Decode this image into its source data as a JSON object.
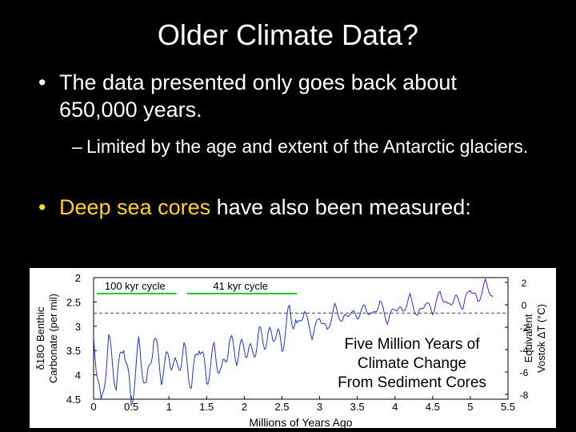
{
  "slide": {
    "title": "Older Climate Data?",
    "bullet1": "The data presented only goes back about 650,000 years.",
    "sub1": "Limited by the age and extent of the Antarctic glaciers.",
    "bullet2_highlight": "Deep sea cores",
    "bullet2_rest": " have also been measured:",
    "bullet_char": "•",
    "dash_char": "–",
    "highlight_color": "#ffd21f"
  },
  "chart_data": {
    "type": "line",
    "title": "Five Million Years of Climate Change From Sediment Cores",
    "title_lines": [
      "Five Million Years of",
      "Climate Change",
      "From Sediment Cores"
    ],
    "xlabel": "Millions of Years Ago",
    "ylabel_left": [
      "δ18O Benthic",
      "Carbonate (per mil)"
    ],
    "ylabel_right": [
      "Equivalent",
      "Vostok ΔT (°C)"
    ],
    "x_ticks": [
      "0",
      "0.5",
      "1",
      "1.5",
      "2",
      "2.5",
      "3",
      "3.5",
      "4",
      "4.5",
      "5",
      "5.5"
    ],
    "y_left_ticks": [
      "2",
      "2.5",
      "3",
      "3.5",
      "4",
      "4.5"
    ],
    "y_right_ticks": [
      "2",
      "0",
      "-2",
      "-4",
      "-6",
      "-8"
    ],
    "xlim": [
      0,
      5.5
    ],
    "ylim_left": [
      2,
      4.5
    ],
    "reference_line": 2.73,
    "annotations": [
      {
        "text": "100 kyr cycle",
        "x_start": 0.0,
        "x_end": 1.1
      },
      {
        "text": "41 kyr cycle",
        "x_start": 1.2,
        "x_end": 2.7
      }
    ],
    "series_color": "#2233cc",
    "annotation_color": "#22cc22",
    "series": [
      {
        "x": [
          0.0,
          0.1,
          0.2,
          0.3,
          0.4,
          0.5,
          0.6,
          0.7,
          0.8,
          0.9,
          1.0,
          1.1,
          1.2,
          1.3,
          1.4,
          1.5,
          1.6,
          1.7,
          1.8,
          1.9,
          2.0,
          2.1,
          2.2,
          2.3,
          2.4,
          2.5,
          2.6,
          2.7,
          2.8,
          2.9,
          3.0,
          3.1,
          3.2,
          3.3,
          3.4,
          3.5,
          3.6,
          3.7,
          3.8,
          3.9,
          4.0,
          4.1,
          4.2,
          4.3,
          4.4,
          4.5,
          4.6,
          4.7,
          4.8,
          4.9,
          5.0,
          5.1,
          5.2,
          5.3
        ],
        "values": [
          3.2,
          4.7,
          3.3,
          4.2,
          3.3,
          4.6,
          3.4,
          4.3,
          3.2,
          4.0,
          3.6,
          3.9,
          3.5,
          4.2,
          3.3,
          4.1,
          3.5,
          4.0,
          3.3,
          3.6,
          3.4,
          3.6,
          3.2,
          3.3,
          3.1,
          3.4,
          2.7,
          3.0,
          2.7,
          3.2,
          2.8,
          3.1,
          2.6,
          2.9,
          2.7,
          2.8,
          2.6,
          2.8,
          2.5,
          2.9,
          2.6,
          2.7,
          2.4,
          2.8,
          2.5,
          2.7,
          2.3,
          2.6,
          2.4,
          2.6,
          2.2,
          2.5,
          2.1,
          2.4
        ]
      }
    ]
  }
}
